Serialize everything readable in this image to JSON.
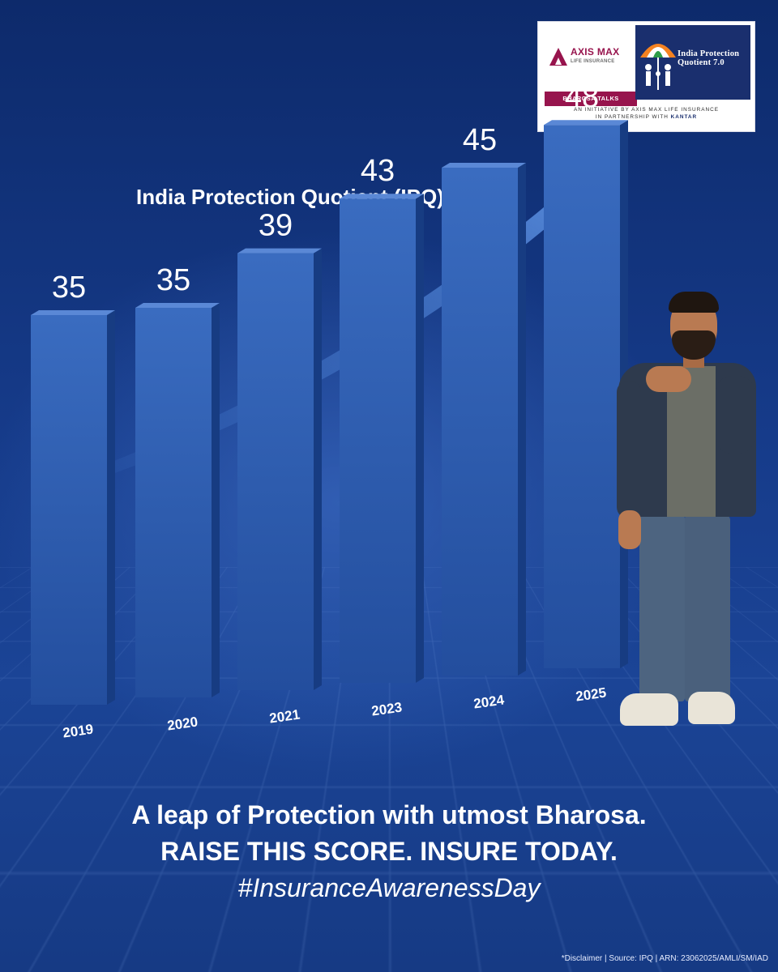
{
  "logo": {
    "brand": "AXIS MAX",
    "brand_sub": "LIFE INSURANCE",
    "talks": "BHAROSA TALKS",
    "ipq_title": "India Protection Quotient 7.0",
    "caption_line1": "AN INITIATIVE BY AXIS MAX LIFE INSURANCE",
    "caption_line2": "IN PARTNERSHIP WITH",
    "partner": "KANTAR"
  },
  "chart_data": {
    "type": "bar",
    "title": "India Protection Quotient (IPQ)",
    "categories": [
      "2019",
      "2020",
      "2021",
      "2023",
      "2024",
      "2025"
    ],
    "values": [
      35,
      35,
      39,
      43,
      45,
      48
    ],
    "xlabel": "",
    "ylabel": "",
    "ylim": [
      0,
      50
    ],
    "grid": false,
    "legend": "none",
    "bar_color": "#2f5fb3"
  },
  "tagline": {
    "line1": "A leap of Protection with utmost Bharosa.",
    "line2": "RAISE THIS SCORE. INSURE TODAY.",
    "hashtag": "#InsuranceAwarenessDay"
  },
  "disclaimer": "*Disclaimer | Source: IPQ | ARN: 23062025/AMLI/SM/IAD",
  "colors": {
    "background": "#163b8a",
    "brand": "#97144d",
    "text": "#ffffff"
  }
}
